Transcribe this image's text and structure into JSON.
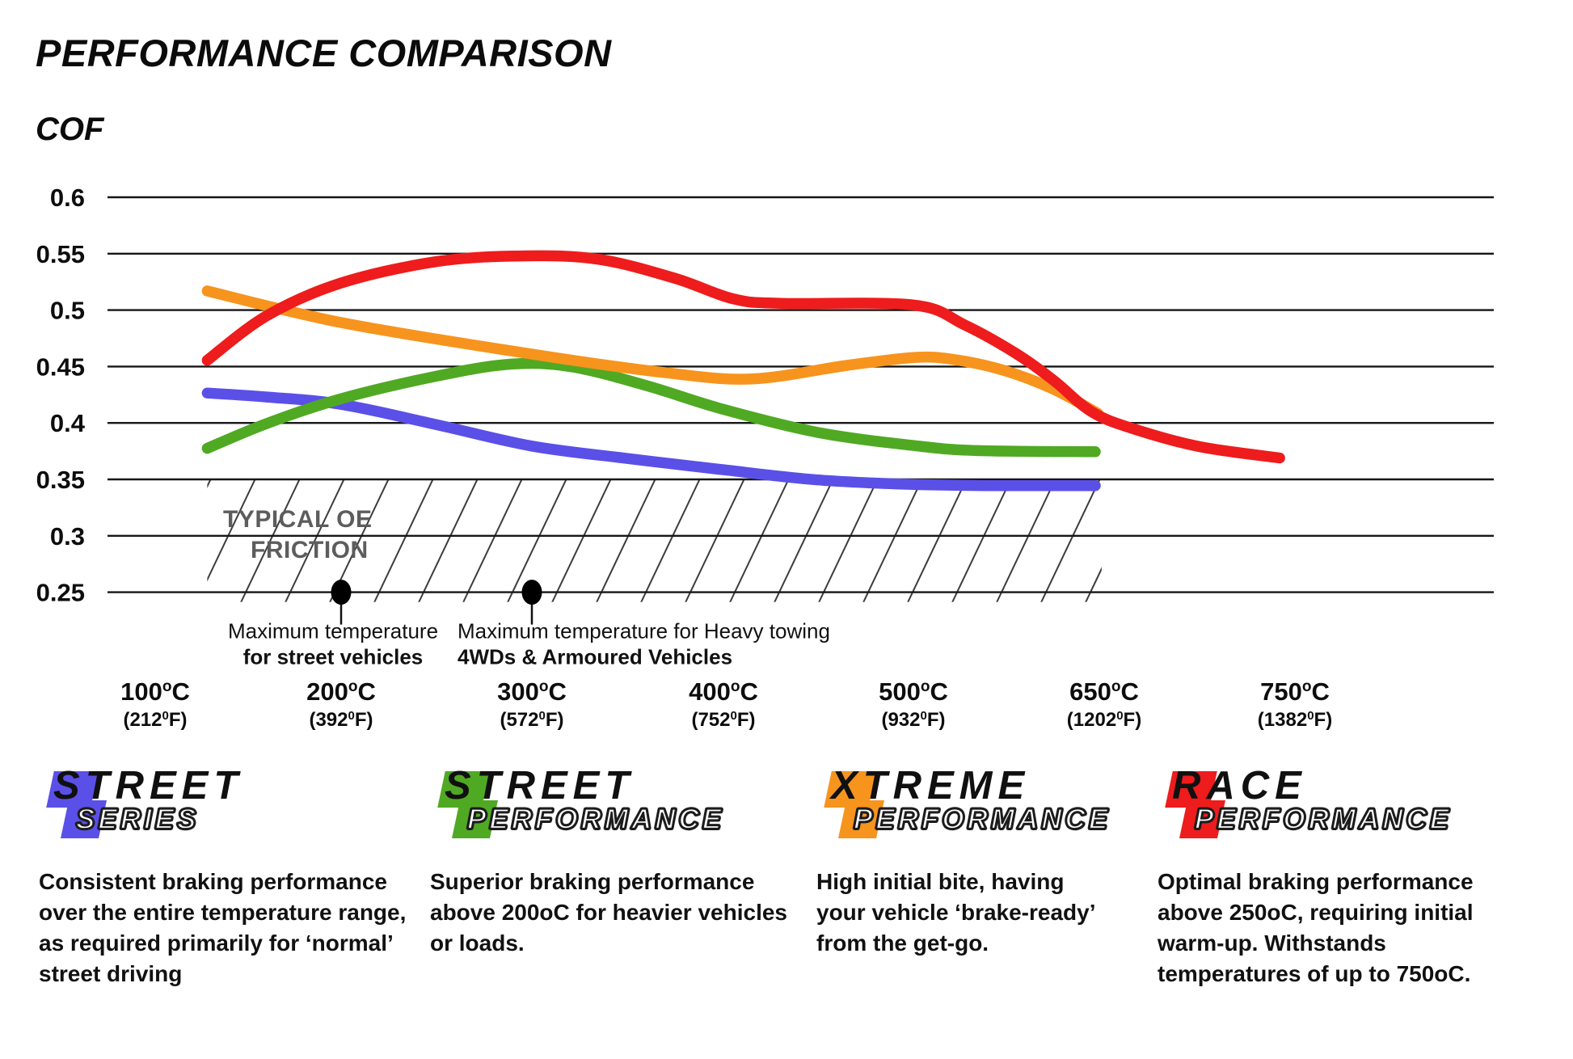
{
  "title": "PERFORMANCE COMPARISON",
  "chart_data": {
    "type": "line",
    "title": "PERFORMANCE COMPARISON",
    "ylabel": "COF",
    "xlabel": "",
    "grid": true,
    "ylim": [
      0.25,
      0.6
    ],
    "y_ticks": [
      0.6,
      0.55,
      0.5,
      0.45,
      0.4,
      0.35,
      0.3,
      0.25
    ],
    "y_tick_labels": [
      "0.6",
      "0.55",
      "0.5",
      "0.45",
      "0.4",
      "0.35",
      "0.3",
      "0.25"
    ],
    "x_ticks": [
      {
        "temp": 100,
        "c": "100",
        "f": "212"
      },
      {
        "temp": 200,
        "c": "200",
        "f": "392"
      },
      {
        "temp": 300,
        "c": "300",
        "f": "572"
      },
      {
        "temp": 400,
        "c": "400",
        "f": "752"
      },
      {
        "temp": 500,
        "c": "500",
        "f": "932"
      },
      {
        "temp": 650,
        "c": "650",
        "f": "1202"
      },
      {
        "temp": 750,
        "c": "750",
        "f": "1382"
      }
    ],
    "deg_c_sup": "o",
    "deg_f_sup": "0",
    "oe_band": {
      "label_line1": "TYPICAL OE",
      "label_line2": "FRICTION",
      "cof_from": 0.25,
      "cof_to": 0.35,
      "temp_from": 128,
      "temp_to": 648
    },
    "annotations": [
      {
        "temp": 200,
        "cof": 0.25,
        "line1": "Maximum temperature",
        "line2": "for street vehicles",
        "align": "center"
      },
      {
        "temp": 300,
        "cof": 0.25,
        "line1": "Maximum temperature for Heavy towing",
        "line2": "4WDs & Armoured Vehicles",
        "align": "left"
      }
    ],
    "series": [
      {
        "name": "Street Series",
        "color": "#5a50e8",
        "points": [
          [
            128,
            0.4265
          ],
          [
            160,
            0.423
          ],
          [
            200,
            0.4165
          ],
          [
            250,
            0.3985
          ],
          [
            300,
            0.3795
          ],
          [
            350,
            0.3685
          ],
          [
            400,
            0.3585
          ],
          [
            450,
            0.3495
          ],
          [
            500,
            0.3455
          ],
          [
            560,
            0.3445
          ],
          [
            643,
            0.3445
          ]
        ]
      },
      {
        "name": "Street Performance",
        "color": "#50a923",
        "points": [
          [
            128,
            0.3775
          ],
          [
            160,
            0.3995
          ],
          [
            200,
            0.4215
          ],
          [
            250,
            0.4415
          ],
          [
            288,
            0.452
          ],
          [
            320,
            0.45
          ],
          [
            360,
            0.433
          ],
          [
            400,
            0.412
          ],
          [
            450,
            0.3915
          ],
          [
            500,
            0.38
          ],
          [
            550,
            0.3755
          ],
          [
            643,
            0.3745
          ]
        ]
      },
      {
        "name": "Xtreme Performance",
        "color": "#f7941e",
        "points": [
          [
            128,
            0.517
          ],
          [
            200,
            0.489
          ],
          [
            300,
            0.461
          ],
          [
            370,
            0.4445
          ],
          [
            415,
            0.439
          ],
          [
            465,
            0.451
          ],
          [
            500,
            0.458
          ],
          [
            530,
            0.4565
          ],
          [
            570,
            0.447
          ],
          [
            610,
            0.43
          ],
          [
            645,
            0.4085
          ]
        ]
      },
      {
        "name": "Race Performance",
        "color": "#ee1c1c",
        "points": [
          [
            128,
            0.4555
          ],
          [
            160,
            0.495
          ],
          [
            200,
            0.524
          ],
          [
            250,
            0.543
          ],
          [
            295,
            0.548
          ],
          [
            335,
            0.545
          ],
          [
            375,
            0.528
          ],
          [
            405,
            0.51
          ],
          [
            430,
            0.506
          ],
          [
            500,
            0.5045
          ],
          [
            540,
            0.487
          ],
          [
            580,
            0.462
          ],
          [
            610,
            0.438
          ],
          [
            640,
            0.41
          ],
          [
            665,
            0.395
          ],
          [
            700,
            0.379
          ],
          [
            742,
            0.369
          ]
        ]
      }
    ]
  },
  "legend": [
    {
      "line1": "STREET",
      "line2": "SERIES",
      "color": "#5a50e8",
      "description": "Consistent braking performance over the entire temperature range, as required primarily for ‘normal’ street driving"
    },
    {
      "line1": "STREET",
      "line2": "PERFORMANCE",
      "color": "#50a923",
      "description": "Superior braking performance above 200oC for heavier vehicles or loads."
    },
    {
      "line1": "XTREME",
      "line2": "PERFORMANCE",
      "color": "#f7941e",
      "description": "High initial bite, having your vehicle ‘brake-ready’ from the get-go."
    },
    {
      "line1": "RACE",
      "line2": "PERFORMANCE",
      "color": "#ee1c1c",
      "description": "Optimal braking performance above 250oC, requiring initial warm-up. Withstands temperatures of up to 750oC."
    }
  ]
}
